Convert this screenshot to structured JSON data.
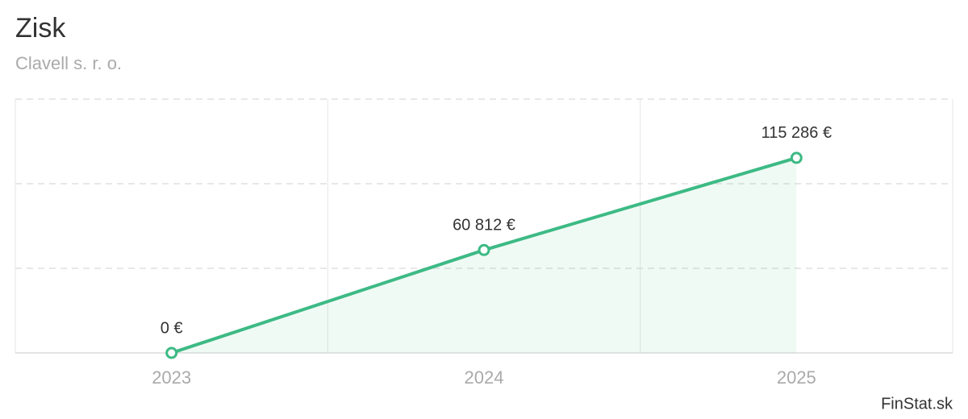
{
  "chart_data": {
    "type": "line",
    "title": "Zisk",
    "subtitle": "Clavell s. r. o.",
    "credit": "FinStat.sk",
    "categories": [
      "2023",
      "2024",
      "2025"
    ],
    "values": [
      0,
      60812,
      115286
    ],
    "value_labels": [
      "0 €",
      "60 812 €",
      "115 286 €"
    ],
    "color": "#3dba85",
    "area": true,
    "ylim": [
      0,
      150000
    ],
    "yticks": [
      0,
      50000,
      100000,
      150000
    ],
    "grid": true
  }
}
